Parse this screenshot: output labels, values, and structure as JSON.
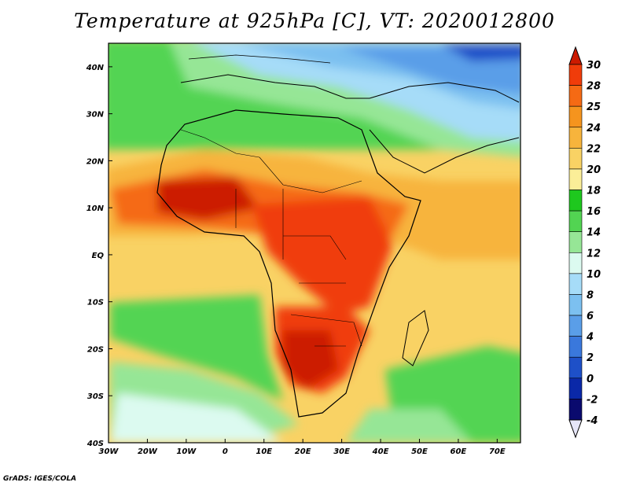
{
  "title": "Temperature at 925hPa [C], VT: 2020012800",
  "credit": "GrADS: IGES/COLA",
  "map": {
    "lon_range": [
      -30,
      76
    ],
    "lat_range": [
      -40,
      45
    ],
    "lon_ticks": [
      {
        "value": -30,
        "label": "30W"
      },
      {
        "value": -20,
        "label": "20W"
      },
      {
        "value": -10,
        "label": "10W"
      },
      {
        "value": 0,
        "label": "0"
      },
      {
        "value": 10,
        "label": "10E"
      },
      {
        "value": 20,
        "label": "20E"
      },
      {
        "value": 30,
        "label": "30E"
      },
      {
        "value": 40,
        "label": "40E"
      },
      {
        "value": 50,
        "label": "50E"
      },
      {
        "value": 60,
        "label": "60E"
      },
      {
        "value": 70,
        "label": "70E"
      }
    ],
    "lat_ticks": [
      {
        "value": 40,
        "label": "40N"
      },
      {
        "value": 30,
        "label": "30N"
      },
      {
        "value": 20,
        "label": "20N"
      },
      {
        "value": 10,
        "label": "10N"
      },
      {
        "value": 0,
        "label": "EQ"
      },
      {
        "value": -10,
        "label": "10S"
      },
      {
        "value": -20,
        "label": "20S"
      },
      {
        "value": -30,
        "label": "30S"
      },
      {
        "value": -40,
        "label": "40S"
      }
    ]
  },
  "colorbar": {
    "levels": [
      "30",
      "28",
      "25",
      "24",
      "22",
      "20",
      "18",
      "16",
      "14",
      "12",
      "10",
      "8",
      "6",
      "4",
      "2",
      "0",
      "-2",
      "-4"
    ],
    "colors": [
      "#cc1a00",
      "#f03c0a",
      "#f56a14",
      "#f5941e",
      "#f7b43c",
      "#f9d264",
      "#fbee98",
      "#1ec81e",
      "#52d452",
      "#96e696",
      "#dcfaf0",
      "#a6dcf8",
      "#7cc0f0",
      "#5a9ee8",
      "#3a78dc",
      "#1e50c8",
      "#0a28a8",
      "#0a0a6e",
      "#e6e6f8"
    ]
  }
}
